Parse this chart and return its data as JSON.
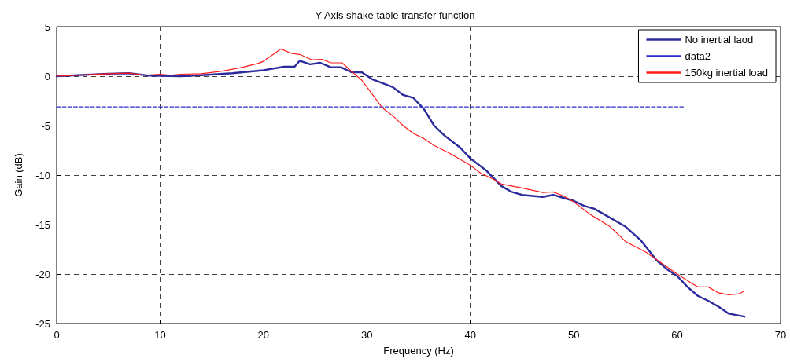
{
  "chart_data": {
    "type": "line",
    "title": "Y Axis shake table transfer function",
    "xlabel": "Frequency (Hz)",
    "ylabel": "Gain (dB)",
    "xlim": [
      0,
      70
    ],
    "xticks": [
      0,
      10,
      20,
      30,
      40,
      50,
      60,
      70
    ],
    "ylim": [
      -25,
      5
    ],
    "yticks": [
      -25,
      -20,
      -15,
      -10,
      -5,
      0,
      5
    ],
    "grid": true,
    "legend": "top right",
    "marker": "none",
    "series": [
      {
        "name": "No inertial laod",
        "color": "#2b2b9e",
        "line_style": "solid",
        "x": [
          0,
          5,
          7,
          9,
          12,
          14,
          17,
          19,
          20,
          22,
          23,
          23.5,
          24.5,
          25.5,
          26.5,
          27.5,
          28.5,
          29.5,
          30.5,
          31.5,
          32.5,
          33.5,
          34.5,
          35.5,
          36.5,
          37.5,
          39,
          40,
          41.5,
          43,
          44,
          45,
          47,
          48,
          49,
          50,
          51,
          52,
          53,
          55,
          56.5,
          58,
          59,
          60,
          61,
          62,
          63,
          64,
          65,
          66.5
        ],
        "values": [
          0,
          0.25,
          0.3,
          0.05,
          0,
          0.1,
          0.3,
          0.5,
          0.6,
          0.95,
          0.95,
          1.55,
          1.2,
          1.35,
          0.9,
          0.9,
          0.4,
          0.4,
          -0.3,
          -0.7,
          -1.1,
          -1.9,
          -2.2,
          -3.3,
          -5,
          -6,
          -7.2,
          -8.3,
          -9.5,
          -11.1,
          -11.7,
          -12,
          -12.2,
          -12,
          -12.3,
          -12.6,
          -13.1,
          -13.4,
          -14,
          -15.2,
          -16.6,
          -18.6,
          -19.5,
          -20.2,
          -21.3,
          -22.2,
          -22.7,
          -23.3,
          -24,
          -24.3
        ]
      },
      {
        "name": "data2",
        "color": "#2b2bc8",
        "line_style": "dashed",
        "x": [
          0,
          60.6
        ],
        "values": [
          -3.1,
          -3.1
        ]
      },
      {
        "name": "150kg inertial load",
        "color": "#ff1a1a",
        "line_style": "solid",
        "x": [
          0,
          3,
          5,
          7,
          8.5,
          10,
          11,
          12,
          14,
          16,
          18,
          19.5,
          20,
          21.7,
          22.7,
          23.5,
          24.7,
          25.7,
          26.5,
          27.6,
          28.5,
          29.5,
          30.5,
          31.5,
          32.5,
          33.5,
          34.5,
          35.5,
          36.5,
          38,
          40,
          41,
          42.2,
          43,
          45,
          47,
          48,
          49,
          50,
          51.5,
          53.5,
          55,
          57,
          60,
          61.5,
          62,
          63,
          64,
          65,
          66,
          66.5
        ],
        "values": [
          0,
          0.15,
          0.25,
          0.3,
          0.1,
          0.2,
          0.1,
          0.2,
          0.25,
          0.5,
          0.9,
          1.3,
          1.5,
          2.75,
          2.3,
          2.2,
          1.65,
          1.7,
          1.35,
          1.35,
          0.5,
          -0.4,
          -1.8,
          -3.2,
          -4,
          -5,
          -5.8,
          -6.3,
          -7,
          -7.8,
          -9,
          -9.8,
          -10.4,
          -10.9,
          -11.3,
          -11.75,
          -11.7,
          -12.1,
          -12.7,
          -13.9,
          -15.2,
          -16.7,
          -17.8,
          -20,
          -21,
          -21.3,
          -21.3,
          -21.9,
          -22.1,
          -22,
          -21.7
        ]
      }
    ]
  }
}
